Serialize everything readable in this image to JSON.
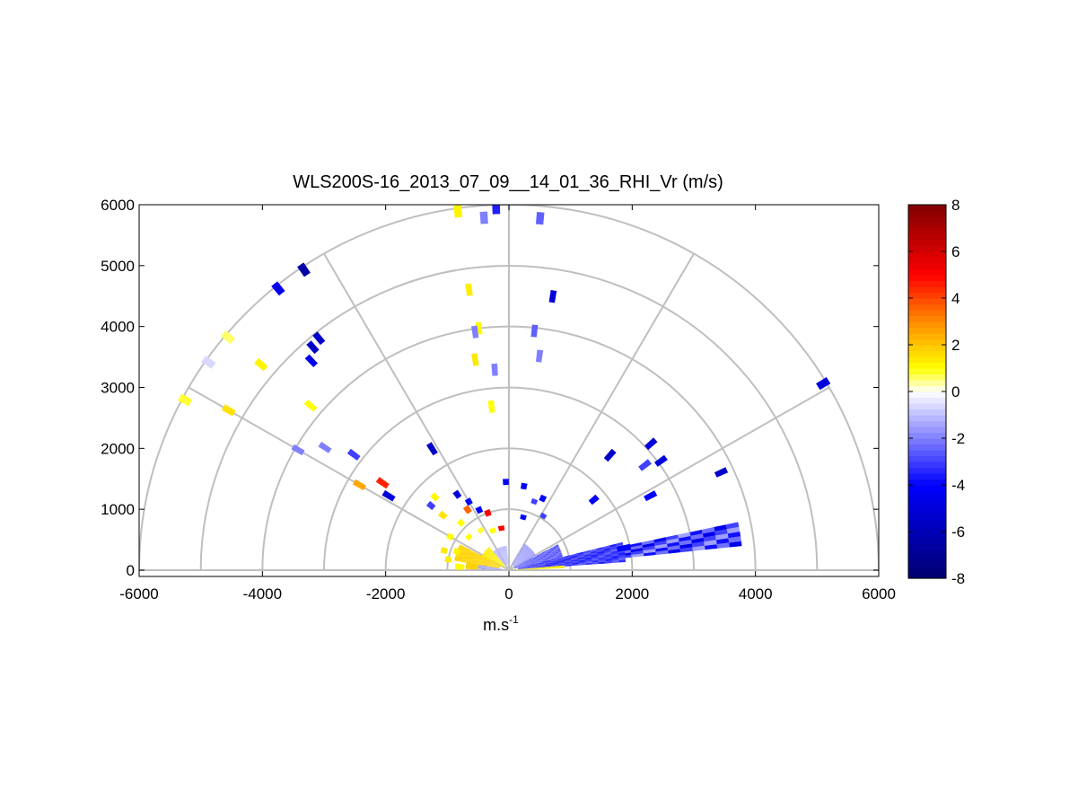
{
  "chart_data": {
    "type": "polar-rhi",
    "title": "WLS200S-16_2013_07_09__14_01_36_RHI_Vr (m/s)",
    "xlabel": "m.s",
    "xlabel_sup": "-1",
    "ylabel": "",
    "xlim": [
      -6000,
      6000
    ],
    "ylim": [
      0,
      6000
    ],
    "x_ticks": [
      "-6000",
      "-4000",
      "-2000",
      "0",
      "2000",
      "4000",
      "6000"
    ],
    "y_ticks": [
      "0",
      "1000",
      "2000",
      "3000",
      "4000",
      "5000",
      "6000"
    ],
    "polar_grid": {
      "range_rings": [
        1000,
        2000,
        3000,
        4000,
        5000,
        6000
      ],
      "spoke_angles_deg": [
        0,
        30,
        60,
        90,
        120,
        150,
        180
      ]
    },
    "colorbar": {
      "min": -8,
      "max": 8,
      "ticks": [
        "8",
        "6",
        "4",
        "2",
        "0",
        "-2",
        "-4",
        "-6",
        "-8"
      ],
      "colormap": [
        "#00006e",
        "#0000ff",
        "#ffffff",
        "#ffff00",
        "#ff8c00",
        "#ff0000",
        "#800000"
      ]
    },
    "gates": [
      {
        "r": 5950,
        "az": 92,
        "len": 200,
        "v": -3.5
      },
      {
        "r": 5950,
        "az": 98,
        "len": 200,
        "v": 1.2
      },
      {
        "r": 5800,
        "az": 94,
        "len": 200,
        "v": -2
      },
      {
        "r": 5800,
        "az": 85,
        "len": 200,
        "v": -2.5
      },
      {
        "r": 5950,
        "az": 124,
        "len": 200,
        "v": -6.5
      },
      {
        "r": 5950,
        "az": 129,
        "len": 200,
        "v": -4.5
      },
      {
        "r": 5950,
        "az": 140,
        "len": 200,
        "v": 0.6
      },
      {
        "r": 5950,
        "az": 145,
        "len": 200,
        "v": -0.6
      },
      {
        "r": 5950,
        "az": 152,
        "len": 200,
        "v": 0.8
      },
      {
        "r": 5950,
        "az": 31,
        "len": 200,
        "v": -5
      },
      {
        "r": 5250,
        "az": 140,
        "len": 200,
        "v": 1.2
      },
      {
        "r": 5250,
        "az": 150,
        "len": 200,
        "v": 1.5
      },
      {
        "r": 4650,
        "az": 98,
        "len": 200,
        "v": 1.3
      },
      {
        "r": 4550,
        "az": 81,
        "len": 200,
        "v": -5
      },
      {
        "r": 4900,
        "az": 129,
        "len": 200,
        "v": -5.5
      },
      {
        "r": 4850,
        "az": 131,
        "len": 200,
        "v": -5.5
      },
      {
        "r": 4700,
        "az": 133,
        "len": 200,
        "v": -4.5
      },
      {
        "r": 4200,
        "az": 140,
        "len": 200,
        "v": 1
      },
      {
        "r": 4000,
        "az": 97,
        "len": 200,
        "v": 1
      },
      {
        "r": 3950,
        "az": 98,
        "len": 200,
        "v": -2
      },
      {
        "r": 3950,
        "az": 84,
        "len": 200,
        "v": -2.5
      },
      {
        "r": 3550,
        "az": 82,
        "len": 200,
        "v": -2
      },
      {
        "r": 3500,
        "az": 99,
        "len": 200,
        "v": 1.4
      },
      {
        "r": 3300,
        "az": 94,
        "len": 200,
        "v": -2
      },
      {
        "r": 3950,
        "az": 150,
        "len": 200,
        "v": -2
      },
      {
        "r": 3600,
        "az": 146,
        "len": 200,
        "v": -2
      },
      {
        "r": 3150,
        "az": 143,
        "len": 200,
        "v": -3
      },
      {
        "r": 2700,
        "az": 96,
        "len": 200,
        "v": 1
      },
      {
        "r": 2500,
        "az": 145,
        "len": 200,
        "v": 4.5
      },
      {
        "r": 2300,
        "az": 148,
        "len": 200,
        "v": -5
      },
      {
        "r": 2800,
        "az": 150,
        "len": 200,
        "v": 2.5
      },
      {
        "r": 2350,
        "az": 122,
        "len": 200,
        "v": -5.5
      },
      {
        "r": 2500,
        "az": 49,
        "len": 200,
        "v": -5.5
      },
      {
        "r": 3050,
        "az": 36,
        "len": 200,
        "v": -5
      },
      {
        "r": 3100,
        "az": 42,
        "len": 200,
        "v": -5
      },
      {
        "r": 2800,
        "az": 38,
        "len": 200,
        "v": -3
      },
      {
        "r": 2600,
        "az": 28,
        "len": 200,
        "v": -4
      },
      {
        "r": 3800,
        "az": 25,
        "len": 200,
        "v": -5.5
      },
      {
        "r": 1800,
        "az": 40,
        "len": 150,
        "v": -4
      },
      {
        "r": 1500,
        "az": 124,
        "len": 120,
        "v": -5
      },
      {
        "r": 1700,
        "az": 135,
        "len": 120,
        "v": 1.1
      },
      {
        "r": 1650,
        "az": 140,
        "len": 120,
        "v": -3
      },
      {
        "r": 1400,
        "az": 140,
        "len": 120,
        "v": 1.5
      },
      {
        "r": 1200,
        "az": 124,
        "len": 120,
        "v": 3.5
      },
      {
        "r": 1100,
        "az": 116,
        "len": 100,
        "v": -4
      },
      {
        "r": 1000,
        "az": 110,
        "len": 100,
        "v": 5
      },
      {
        "r": 1300,
        "az": 120,
        "len": 100,
        "v": -4
      },
      {
        "r": 1100,
        "az": 135,
        "len": 100,
        "v": 1
      },
      {
        "r": 1100,
        "az": 150,
        "len": 100,
        "v": 1
      },
      {
        "r": 1400,
        "az": 80,
        "len": 100,
        "v": -4
      },
      {
        "r": 1300,
        "az": 65,
        "len": 100,
        "v": -4
      },
      {
        "r": 1200,
        "az": 70,
        "len": 80,
        "v": -3
      },
      {
        "r": 1050,
        "az": 58,
        "len": 80,
        "v": -3
      },
      {
        "r": 900,
        "az": 75,
        "len": 80,
        "v": -4
      },
      {
        "r": 1450,
        "az": 92,
        "len": 100,
        "v": -4
      },
      {
        "r": 700,
        "az": 100,
        "len": 80,
        "v": 5
      },
      {
        "r": 700,
        "az": 112,
        "len": 80,
        "v": 1
      },
      {
        "r": 800,
        "az": 125,
        "len": 80,
        "v": 0.8
      },
      {
        "r": 850,
        "az": 140,
        "len": 80,
        "v": 1
      },
      {
        "r": 900,
        "az": 160,
        "len": 100,
        "v": 1.2
      },
      {
        "r": 1100,
        "az": 163,
        "len": 100,
        "v": 1.4
      },
      {
        "r": 1000,
        "az": 170,
        "len": 100,
        "v": 1.3
      },
      {
        "r": 1900,
        "az": 11,
        "len": 220,
        "v": -4
      },
      {
        "r": 600,
        "az": 174,
        "len": 200,
        "v": 1.8
      },
      {
        "r": 800,
        "az": 176,
        "len": 150,
        "v": 1
      }
    ],
    "bands": [
      {
        "r0": 600,
        "r1": 3800,
        "az0": 6,
        "az1": 12,
        "v0": -4.5,
        "v1": -1.5
      },
      {
        "r0": 150,
        "r1": 1900,
        "az0": 4,
        "az1": 14,
        "v0": -3.5,
        "v1": -2.5
      },
      {
        "r0": 100,
        "r1": 900,
        "az0": 14,
        "az1": 28,
        "v0": -3,
        "v1": -2
      },
      {
        "r0": 100,
        "r1": 500,
        "az0": 28,
        "az1": 60,
        "v0": -2,
        "v1": -1
      },
      {
        "r0": 100,
        "r1": 900,
        "az0": 2,
        "az1": 5,
        "v0": 1,
        "v1": 1.5
      },
      {
        "r0": 150,
        "r1": 900,
        "az0": 152,
        "az1": 170,
        "v0": 1.5,
        "v1": 2
      },
      {
        "r0": 100,
        "r1": 700,
        "az0": 170,
        "az1": 178,
        "v0": -2,
        "v1": -1
      },
      {
        "r0": 100,
        "r1": 500,
        "az0": 130,
        "az1": 152,
        "v0": 1,
        "v1": 1.6
      },
      {
        "r0": 100,
        "r1": 400,
        "az0": 95,
        "az1": 130,
        "v0": -1.5,
        "v1": -0.8
      }
    ]
  }
}
